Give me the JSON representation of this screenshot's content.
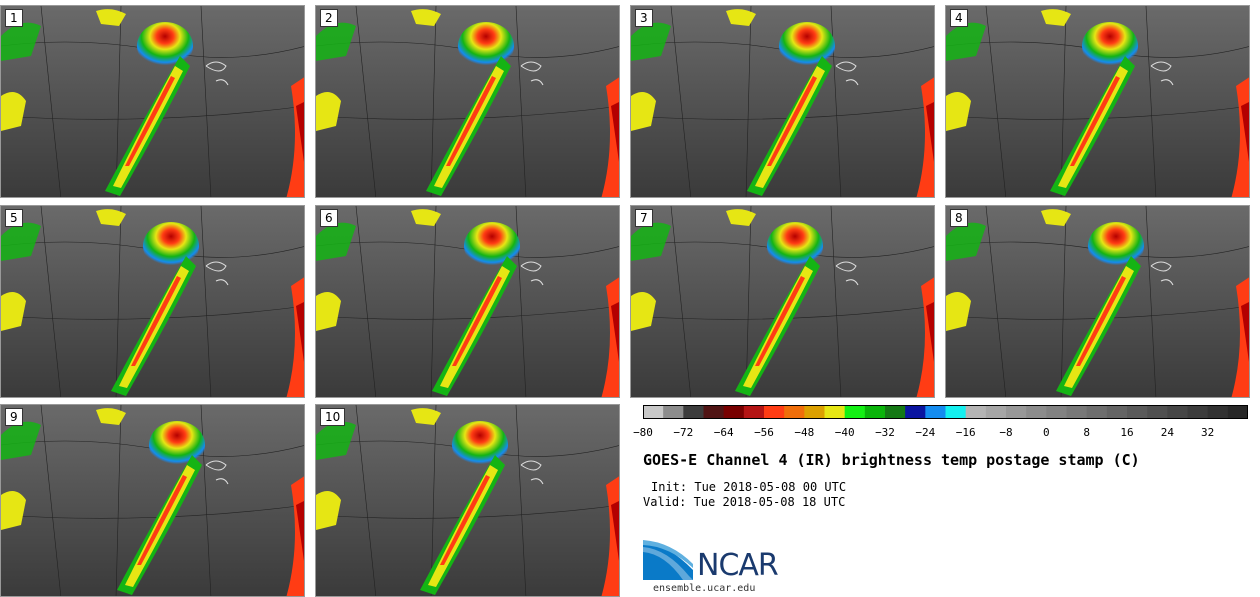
{
  "panels": [
    {
      "label": "1"
    },
    {
      "label": "2"
    },
    {
      "label": "3"
    },
    {
      "label": "4"
    },
    {
      "label": "5"
    },
    {
      "label": "6"
    },
    {
      "label": "7"
    },
    {
      "label": "8"
    },
    {
      "label": "9"
    },
    {
      "label": "10"
    }
  ],
  "colorbar": {
    "colors": [
      "#c8c8c8",
      "#8c8c8c",
      "#3c3c3c",
      "#501414",
      "#780000",
      "#b41414",
      "#ff3c14",
      "#f06e0a",
      "#dca000",
      "#e6e614",
      "#14f014",
      "#0ab40a",
      "#147814",
      "#0a14a0",
      "#148cf0",
      "#14f0f0",
      "#b4b4b4",
      "#a6a6a6",
      "#989898",
      "#8c8c8c",
      "#828282",
      "#787878",
      "#6e6e6e",
      "#646464",
      "#5a5a5a",
      "#505050",
      "#464646",
      "#3c3c3c",
      "#323232",
      "#282828"
    ],
    "ticks": [
      "−80",
      "−72",
      "−64",
      "−56",
      "−48",
      "−40",
      "−32",
      "−24",
      "−16",
      "−8",
      "0",
      "8",
      "16",
      "24",
      "32"
    ]
  },
  "title": "GOES-E Channel 4 (IR) brightness temp postage stamp (C)",
  "init": "Init: Tue 2018-05-08 00 UTC",
  "valid": "Valid: Tue 2018-05-08 18 UTC",
  "logo_text": "NCAR",
  "site": "ensemble.ucar.edu"
}
